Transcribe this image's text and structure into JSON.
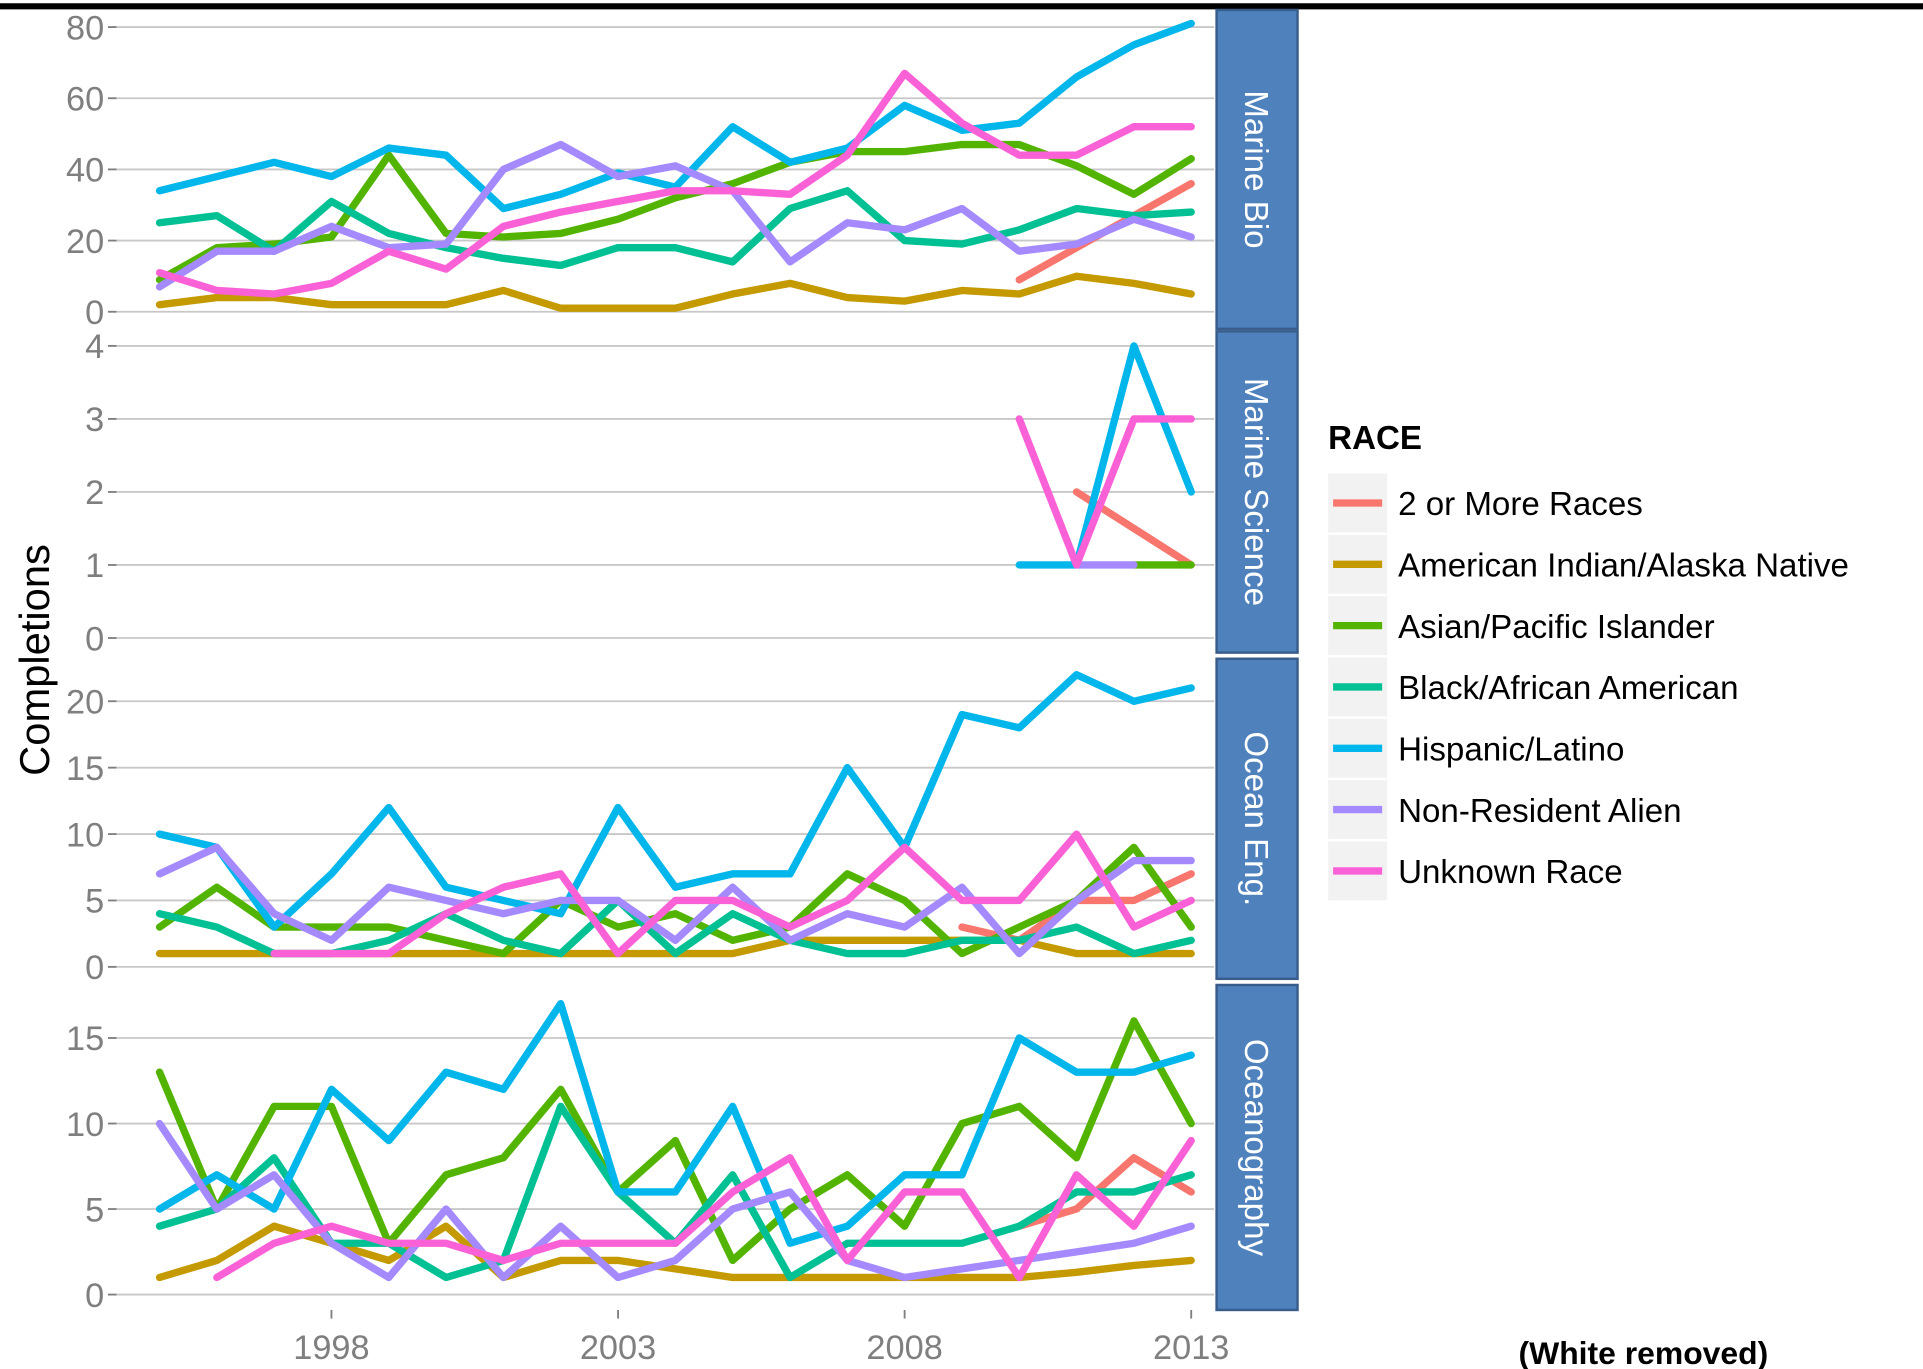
{
  "chart_data": {
    "type": "line",
    "y_label": "Completions",
    "legend_title": "RACE",
    "note": "(White removed)",
    "x": [
      1995,
      1996,
      1997,
      1998,
      1999,
      2000,
      2001,
      2002,
      2003,
      2004,
      2005,
      2006,
      2007,
      2008,
      2009,
      2010,
      2011,
      2012,
      2013
    ],
    "xlim": [
      1994.25,
      2013.4
    ],
    "xticks": [
      1998,
      2003,
      2008,
      2013
    ],
    "grid": true,
    "series": [
      {
        "name": "2 or More Races",
        "color": "#f8766d"
      },
      {
        "name": "American Indian/Alaska Native",
        "color": "#c49a00"
      },
      {
        "name": "Asian/Pacific Islander",
        "color": "#53b400"
      },
      {
        "name": "Black/African American",
        "color": "#00c094"
      },
      {
        "name": "Hispanic/Latino",
        "color": "#00b6eb"
      },
      {
        "name": "Non-Resident Alien",
        "color": "#a58aff"
      },
      {
        "name": "Unknown Race",
        "color": "#fb61d7"
      }
    ],
    "facets": [
      {
        "title": "Marine Bio",
        "ylim": [
          -4.8,
          84.8
        ],
        "yticks": [
          0,
          20,
          40,
          60,
          80
        ],
        "values": [
          [
            null,
            null,
            null,
            null,
            null,
            null,
            null,
            null,
            null,
            null,
            null,
            null,
            null,
            null,
            null,
            9,
            18,
            27,
            36
          ],
          [
            2,
            4,
            4,
            2,
            2,
            2,
            6,
            1,
            1,
            1,
            5,
            8,
            4,
            3,
            6,
            5,
            10,
            8,
            5
          ],
          [
            9,
            18,
            19,
            21,
            44,
            22,
            21,
            22,
            26,
            32,
            36,
            42,
            45,
            45,
            47,
            47,
            41,
            33,
            43
          ],
          [
            25,
            27,
            17,
            31,
            22,
            18,
            15,
            13,
            18,
            18,
            14,
            29,
            34,
            20,
            19,
            23,
            29,
            27,
            28
          ],
          [
            34,
            38,
            42,
            38,
            46,
            44,
            29,
            33,
            39,
            35,
            52,
            42,
            46,
            58,
            51,
            53,
            66,
            75,
            81
          ],
          [
            7,
            17,
            17,
            24,
            18,
            19,
            40,
            47,
            38,
            41,
            34,
            14,
            25,
            23,
            29,
            17,
            19,
            26,
            21
          ],
          [
            11,
            6,
            5,
            8,
            17,
            12,
            24,
            28,
            31,
            34,
            34,
            33,
            44,
            67,
            53,
            44,
            44,
            52,
            52
          ]
        ]
      },
      {
        "title": "Marine Science",
        "ylim": [
          -0.2,
          4.2
        ],
        "yticks": [
          0,
          1,
          2,
          3,
          4
        ],
        "values": [
          [
            null,
            null,
            null,
            null,
            null,
            null,
            null,
            null,
            null,
            null,
            null,
            null,
            null,
            null,
            null,
            null,
            2,
            1.5,
            1
          ],
          [
            null,
            null,
            null,
            null,
            null,
            null,
            null,
            null,
            null,
            null,
            null,
            null,
            null,
            null,
            null,
            null,
            null,
            null,
            null
          ],
          [
            null,
            null,
            null,
            null,
            null,
            null,
            null,
            null,
            null,
            null,
            null,
            null,
            null,
            null,
            null,
            null,
            null,
            1,
            1
          ],
          [
            null,
            null,
            null,
            null,
            null,
            null,
            null,
            null,
            null,
            null,
            null,
            null,
            null,
            null,
            null,
            null,
            null,
            null,
            null
          ],
          [
            null,
            null,
            null,
            null,
            null,
            null,
            null,
            null,
            null,
            null,
            null,
            null,
            null,
            null,
            null,
            1,
            1,
            4,
            2
          ],
          [
            null,
            null,
            null,
            null,
            null,
            null,
            null,
            null,
            null,
            null,
            null,
            null,
            null,
            null,
            null,
            null,
            1,
            1,
            null
          ],
          [
            null,
            null,
            null,
            null,
            null,
            null,
            null,
            null,
            null,
            null,
            null,
            null,
            null,
            null,
            null,
            3,
            1,
            3,
            3
          ]
        ]
      },
      {
        "title": "Ocean Eng.",
        "ylim": [
          -0.9,
          23.2
        ],
        "yticks": [
          0,
          5,
          10,
          15,
          20
        ],
        "values": [
          [
            null,
            null,
            null,
            null,
            null,
            null,
            null,
            null,
            null,
            null,
            null,
            null,
            null,
            null,
            3,
            2,
            5,
            5,
            7
          ],
          [
            1,
            1,
            1,
            1,
            1,
            1,
            1,
            1,
            1,
            1,
            1,
            2,
            2,
            2,
            2,
            2,
            1,
            1,
            1
          ],
          [
            3,
            6,
            3,
            3,
            3,
            2,
            1,
            5,
            3,
            4,
            2,
            3,
            7,
            5,
            1,
            3,
            5,
            9,
            3
          ],
          [
            4,
            3,
            1,
            1,
            2,
            4,
            2,
            1,
            5,
            1,
            4,
            2,
            1,
            1,
            2,
            2,
            3,
            1,
            2
          ],
          [
            10,
            9,
            3,
            7,
            12,
            6,
            5,
            4,
            12,
            6,
            7,
            7,
            15,
            9,
            19,
            18,
            22,
            20,
            21
          ],
          [
            7,
            9,
            4,
            2,
            6,
            5,
            4,
            5,
            5,
            2,
            6,
            2,
            4,
            3,
            6,
            1,
            5,
            8,
            8
          ],
          [
            null,
            null,
            1,
            1,
            1,
            4,
            6,
            7,
            1,
            5,
            5,
            3,
            5,
            9,
            5,
            5,
            10,
            3,
            5
          ]
        ]
      },
      {
        "title": "Oceanography",
        "ylim": [
          -0.9,
          18.1
        ],
        "yticks": [
          0,
          5,
          10,
          15
        ],
        "values": [
          [
            null,
            null,
            null,
            null,
            null,
            null,
            null,
            null,
            null,
            null,
            null,
            null,
            null,
            null,
            null,
            4,
            5,
            8,
            6
          ],
          [
            1,
            2,
            4,
            3,
            2,
            4,
            1,
            2,
            2,
            1.5,
            1,
            1,
            1,
            1,
            1,
            1,
            1.3,
            1.7,
            2
          ],
          [
            13,
            5,
            11,
            11,
            3,
            7,
            8,
            12,
            6,
            9,
            2,
            5,
            7,
            4,
            10,
            11,
            8,
            16,
            10
          ],
          [
            4,
            5,
            8,
            3,
            3,
            1,
            2,
            11,
            6,
            3,
            7,
            1,
            3,
            3,
            3,
            4,
            6,
            6,
            7
          ],
          [
            5,
            7,
            5,
            12,
            9,
            13,
            12,
            17,
            6,
            6,
            11,
            3,
            4,
            7,
            7,
            15,
            13,
            13,
            14
          ],
          [
            10,
            5,
            7,
            3,
            1,
            5,
            1,
            4,
            1,
            2,
            5,
            6,
            2,
            1,
            1.5,
            2,
            2.5,
            3,
            4
          ],
          [
            null,
            1,
            3,
            4,
            3,
            3,
            2,
            3,
            3,
            3,
            6,
            8,
            2,
            6,
            6,
            1,
            7,
            4,
            9
          ]
        ]
      }
    ]
  }
}
